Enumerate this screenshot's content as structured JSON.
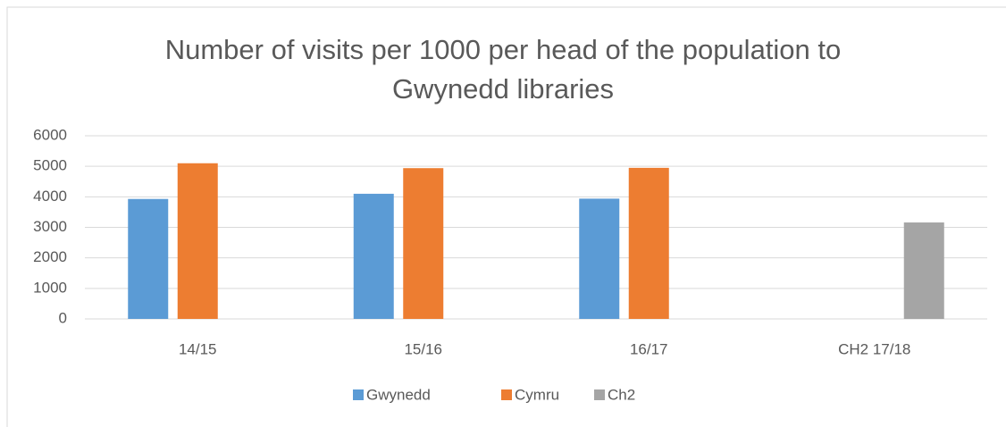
{
  "chart_data": {
    "type": "bar",
    "title": "Number of visits per 1000 per head of the population to Gwynedd libraries",
    "categories": [
      "14/15",
      "15/16",
      "16/17",
      "CH2 17/18"
    ],
    "series": [
      {
        "name": "Gwynedd",
        "color": "#5b9bd5",
        "values": [
          3930,
          4100,
          3940,
          null
        ]
      },
      {
        "name": "Cymru",
        "color": "#ed7d31",
        "values": [
          5100,
          4940,
          4950,
          null
        ]
      },
      {
        "name": "Ch2",
        "color": "#a5a5a5",
        "values": [
          null,
          null,
          null,
          3160
        ]
      }
    ],
    "ylim": [
      0,
      6000
    ],
    "yticks": [
      0,
      1000,
      2000,
      3000,
      4000,
      5000,
      6000
    ],
    "grid": true,
    "legend": "bottom"
  }
}
